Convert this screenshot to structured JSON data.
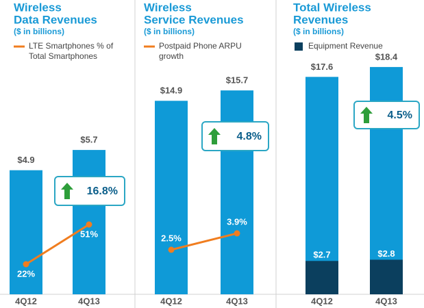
{
  "chart_data": [
    {
      "type": "bar",
      "title": [
        "Wireless",
        "Data Revenues"
      ],
      "subtitle": "($ in billions)",
      "categories": [
        "4Q12",
        "4Q13"
      ],
      "ylim": [
        0,
        10
      ],
      "y2lim": [
        0,
        185
      ],
      "series": [
        {
          "color": "#0f9ad7",
          "values": [
            4.9,
            5.7
          ],
          "value_labels": [
            "$4.9",
            "$5.7"
          ]
        },
        {
          "type": "line",
          "axis": "y2",
          "name": "LTE Smartphones % of Total Smartphones",
          "color": "#f07d1f",
          "values": [
            22,
            51
          ],
          "value_labels": [
            "22%",
            "51%"
          ]
        }
      ],
      "callout": "16.8%"
    },
    {
      "type": "bar",
      "title": [
        "Wireless",
        "Service Revenues"
      ],
      "subtitle": "($ in billions)",
      "categories": [
        "4Q12",
        "4Q13"
      ],
      "ylim": [
        0,
        19.5
      ],
      "y2lim": [
        -1.3,
        20.3
      ],
      "series": [
        {
          "color": "#0f9ad7",
          "values": [
            14.9,
            15.7
          ],
          "value_labels": [
            "$14.9",
            "$15.7"
          ]
        },
        {
          "type": "line",
          "axis": "y2",
          "name": "Postpaid Phone ARPU growth",
          "color": "#f07d1f",
          "values": [
            2.5,
            3.9
          ],
          "value_labels": [
            "2.5%",
            "3.9%"
          ]
        }
      ],
      "callout": "4.8%"
    },
    {
      "type": "bar",
      "title": [
        "Total Wireless",
        "Revenues"
      ],
      "subtitle": "($ in billions)",
      "categories": [
        "4Q12",
        "4Q13"
      ],
      "ylim": [
        0,
        20.5
      ],
      "series": [
        {
          "color": "#0f9ad7",
          "values": [
            17.6,
            18.4
          ],
          "value_labels": [
            "$17.6",
            "$18.4"
          ]
        },
        {
          "type": "bar",
          "name": "Equipment Revenue",
          "color": "#0b3f5e",
          "values": [
            2.7,
            2.8
          ],
          "value_labels": [
            "$2.7",
            "$2.8"
          ]
        }
      ],
      "callout": "4.5%"
    }
  ]
}
